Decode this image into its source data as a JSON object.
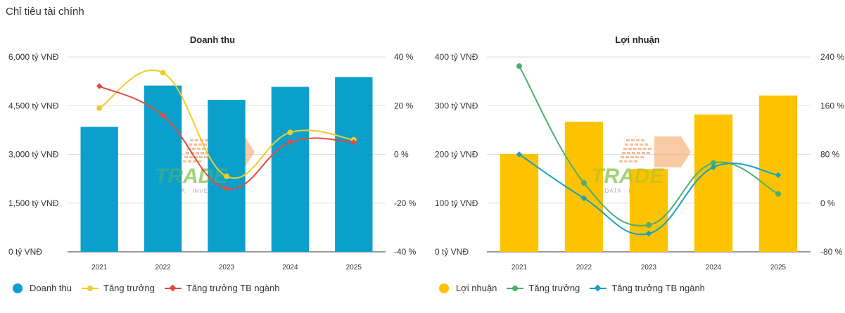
{
  "page": {
    "title": "Chỉ tiêu tài chính"
  },
  "colors": {
    "revenue_bar": "#0ba0cc",
    "profit_bar": "#fdc300",
    "revenue_growth": "#f2cc2a",
    "revenue_industry": "#e04b3c",
    "profit_growth": "#4caf72",
    "profit_industry": "#17a2c4",
    "grid": "#dddddd",
    "axis": "#444444"
  },
  "watermark": {
    "brand": "TRADE",
    "tagline": "E DATA · INVEST"
  },
  "chart_data": [
    {
      "type": "bar",
      "title": "Doanh thu",
      "categories": [
        "2021",
        "2022",
        "2023",
        "2024",
        "2025"
      ],
      "left_axis": {
        "ticks": [
          "6,000 tỷ VNĐ",
          "4,500 tỷ VNĐ",
          "3,000 tỷ VNĐ",
          "1,500 tỷ VNĐ",
          "0 tỷ VNĐ"
        ],
        "ylim": [
          0,
          6000
        ]
      },
      "right_axis": {
        "ticks": [
          "40 %",
          "20 %",
          "0 %",
          "-20 %",
          "-40 %"
        ],
        "ylim": [
          -40,
          40
        ]
      },
      "series": [
        {
          "name": "Doanh thu",
          "type": "bar",
          "axis": "left",
          "values": [
            3850,
            5120,
            4680,
            5080,
            5380
          ]
        },
        {
          "name": "Tăng trưởng",
          "type": "line",
          "axis": "right",
          "marker": "circle",
          "values": [
            19,
            33.5,
            -9,
            9,
            6
          ]
        },
        {
          "name": "Tăng trưởng TB ngành",
          "type": "line",
          "axis": "right",
          "marker": "diamond",
          "values": [
            28,
            16,
            -14,
            5,
            5
          ]
        }
      ],
      "legend": "bottom-left",
      "grid": true
    },
    {
      "type": "bar",
      "title": "Lợi nhuận",
      "categories": [
        "2021",
        "2022",
        "2023",
        "2024",
        "2025"
      ],
      "left_axis": {
        "ticks": [
          "400 tỷ VNĐ",
          "300 tỷ VNĐ",
          "200 tỷ VNĐ",
          "100 tỷ VNĐ",
          "0 tỷ VNĐ"
        ],
        "ylim": [
          0,
          400
        ]
      },
      "right_axis": {
        "ticks": [
          "240 %",
          "160 %",
          "80 %",
          "0 %",
          "-80 %"
        ],
        "ylim": [
          -80,
          240
        ]
      },
      "series": [
        {
          "name": "Lợi nhuận",
          "type": "bar",
          "axis": "left",
          "values": [
            201,
            267,
            170,
            282,
            321
          ]
        },
        {
          "name": "Tăng trưởng",
          "type": "line",
          "axis": "right",
          "marker": "circle",
          "values": [
            225,
            33,
            -36,
            66,
            15
          ]
        },
        {
          "name": "Tăng trưởng TB ngành",
          "type": "line",
          "axis": "right",
          "marker": "diamond",
          "values": [
            80,
            8,
            -50,
            59,
            46
          ]
        }
      ],
      "legend": "bottom-left",
      "grid": true
    }
  ]
}
